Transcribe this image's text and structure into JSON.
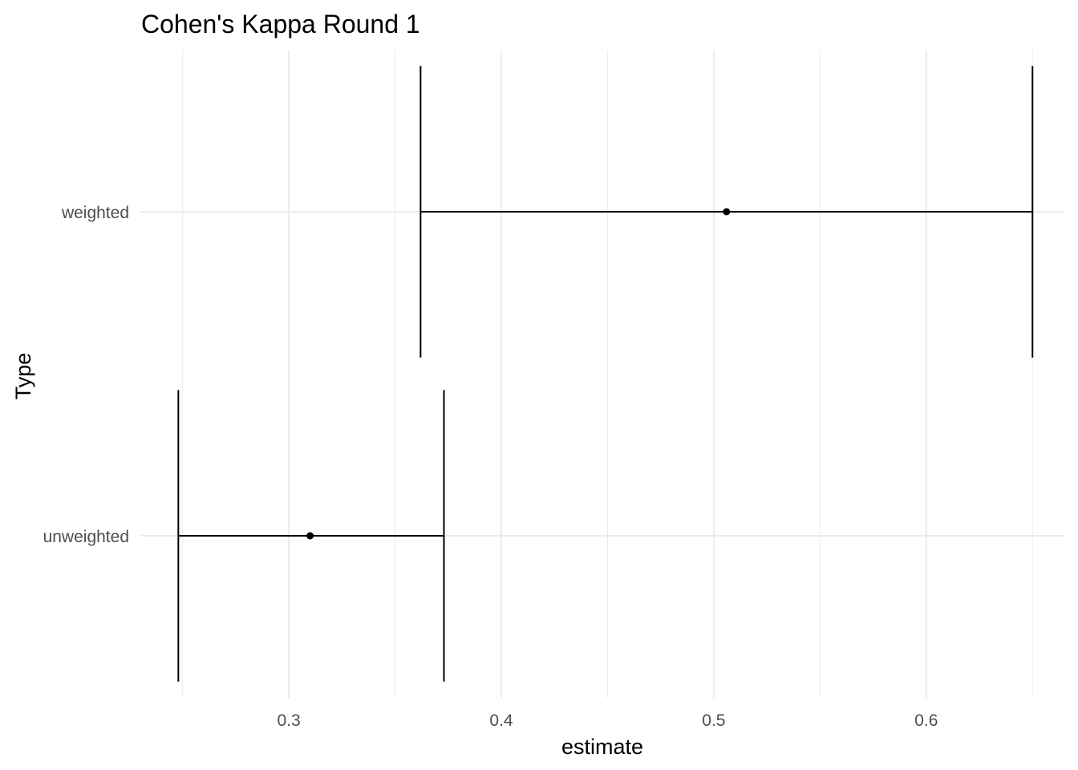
{
  "chart_data": {
    "type": "errorbar",
    "title": "Cohen's Kappa Round 1",
    "xlabel": "estimate",
    "ylabel": "Type",
    "xlim": [
      0.2305,
      0.665
    ],
    "x_major_ticks": [
      0.3,
      0.4,
      0.5,
      0.6
    ],
    "x_tick_labels": [
      "0.3",
      "0.4",
      "0.5",
      "0.6"
    ],
    "x_minor_ticks": [
      0.25,
      0.35,
      0.45,
      0.55,
      0.65
    ],
    "categories": [
      "unweighted",
      "weighted"
    ],
    "points": [
      {
        "category": "weighted",
        "estimate": 0.506,
        "lower": 0.362,
        "upper": 0.65
      },
      {
        "category": "unweighted",
        "estimate": 0.31,
        "lower": 0.248,
        "upper": 0.373
      }
    ],
    "grid": true,
    "legend": "none"
  }
}
